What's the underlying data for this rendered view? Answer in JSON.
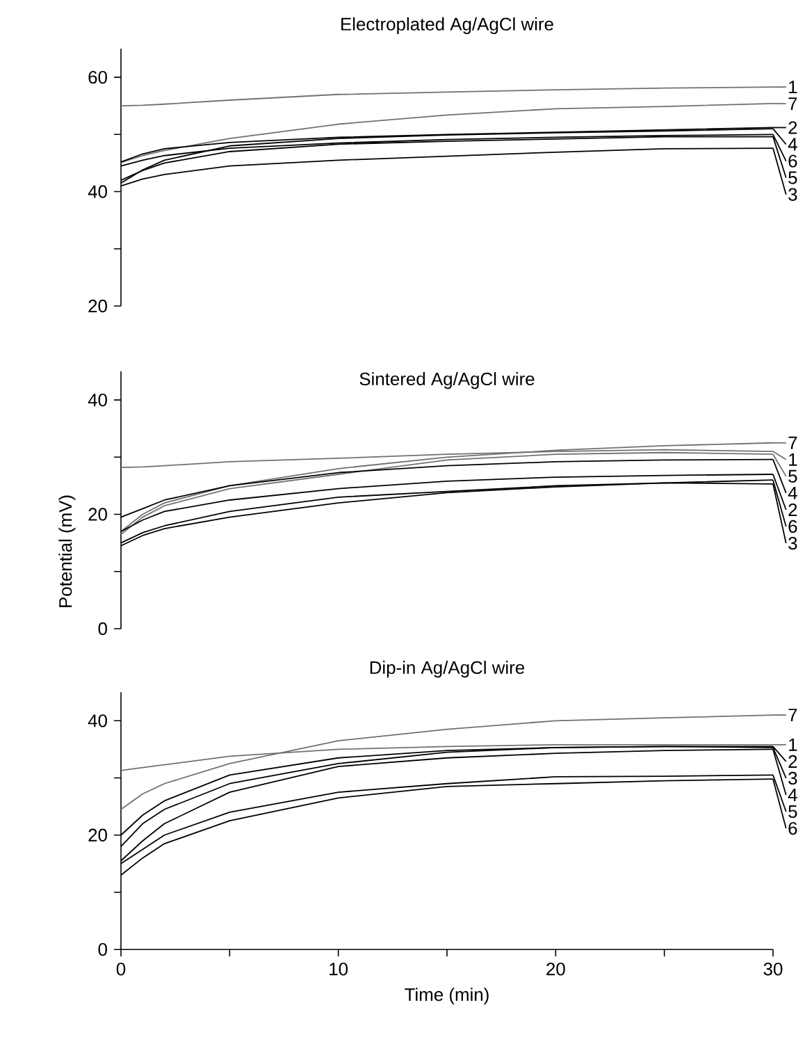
{
  "chart_data": [
    {
      "type": "line",
      "title": "Electroplated Ag/AgCl wire",
      "legend": "right",
      "xlim": [
        0,
        30
      ],
      "ylim": [
        20,
        65
      ],
      "yticks": [
        20,
        {
          "value": 30,
          "label": null
        },
        40,
        {
          "value": 50,
          "label": null
        },
        60
      ],
      "tick_labels": "y",
      "x": [
        0,
        1,
        2,
        5,
        10,
        15,
        20,
        25,
        30
      ],
      "series": [
        {
          "name": "1",
          "color": "#707070",
          "values": [
            55.0,
            55.1,
            55.3,
            56.0,
            57.0,
            57.4,
            57.8,
            58.1,
            58.3
          ]
        },
        {
          "name": "7",
          "color": "#707070",
          "values": [
            45.1,
            46.3,
            47.2,
            49.3,
            51.8,
            53.4,
            54.5,
            54.9,
            55.4
          ]
        },
        {
          "name": "2",
          "color": "#000000",
          "values": [
            45.2,
            46.6,
            47.5,
            48.6,
            49.5,
            50.0,
            50.4,
            50.8,
            51.2
          ]
        },
        {
          "name": "4",
          "color": "#000000",
          "values": [
            41.5,
            43.8,
            45.5,
            48.0,
            49.3,
            49.9,
            50.3,
            50.6,
            51.0
          ]
        },
        {
          "name": "6",
          "color": "#000000",
          "values": [
            44.5,
            45.5,
            46.3,
            47.6,
            48.5,
            49.1,
            49.5,
            49.8,
            50.0
          ]
        },
        {
          "name": "5",
          "color": "#000000",
          "values": [
            42.0,
            43.7,
            45.0,
            47.0,
            48.3,
            48.8,
            49.2,
            49.6,
            49.6
          ]
        },
        {
          "name": "3",
          "color": "#000000",
          "values": [
            41.0,
            42.2,
            43.0,
            44.5,
            45.5,
            46.2,
            46.9,
            47.5,
            47.6
          ]
        }
      ]
    },
    {
      "type": "line",
      "title": "Sintered Ag/AgCl wire",
      "legend": "right",
      "ylabel": "Potential (mV)",
      "xlim": [
        0,
        30
      ],
      "ylim": [
        0,
        45
      ],
      "yticks": [
        0,
        {
          "value": 10,
          "label": null
        },
        20,
        {
          "value": 30,
          "label": null
        },
        40
      ],
      "tick_labels": "y",
      "x": [
        0,
        1,
        2,
        5,
        10,
        15,
        20,
        25,
        30
      ],
      "series": [
        {
          "name": "1",
          "color": "#707070",
          "values": [
            28.2,
            28.3,
            28.5,
            29.2,
            29.8,
            30.5,
            31.0,
            31.3,
            31.0
          ]
        },
        {
          "name": "7",
          "color": "#707070",
          "values": [
            17.0,
            20.0,
            22.0,
            25.0,
            28.0,
            30.0,
            31.2,
            32.0,
            32.5
          ]
        },
        {
          "name": "5",
          "color": "#707070",
          "values": [
            16.5,
            19.5,
            21.5,
            24.5,
            27.0,
            29.5,
            30.5,
            30.8,
            30.5
          ]
        },
        {
          "name": "4",
          "color": "#000000",
          "values": [
            19.5,
            21.0,
            22.5,
            25.0,
            27.3,
            28.5,
            29.2,
            29.5,
            29.6
          ]
        },
        {
          "name": "2",
          "color": "#000000",
          "values": [
            17.0,
            19.0,
            20.5,
            22.5,
            24.5,
            25.8,
            26.5,
            26.8,
            27.0
          ]
        },
        {
          "name": "6",
          "color": "#000000",
          "values": [
            14.5,
            16.3,
            17.5,
            19.5,
            22.0,
            23.8,
            24.8,
            25.5,
            26.0
          ]
        },
        {
          "name": "3",
          "color": "#000000",
          "values": [
            15.0,
            16.8,
            18.0,
            20.5,
            23.0,
            24.0,
            25.0,
            25.5,
            25.3
          ]
        }
      ]
    },
    {
      "type": "line",
      "title": "Dip-in Ag/AgCl wire",
      "legend": "right",
      "xlabel": "Time (min)",
      "xlim": [
        0,
        30
      ],
      "ylim": [
        0,
        45
      ],
      "xticks": [
        0,
        {
          "value": 5,
          "label": null
        },
        10,
        {
          "value": 15,
          "label": null
        },
        20,
        {
          "value": 25,
          "label": null
        },
        30
      ],
      "yticks": [
        0,
        {
          "value": 10,
          "label": null
        },
        20,
        {
          "value": 30,
          "label": null
        },
        40
      ],
      "x": [
        0,
        1,
        2,
        5,
        10,
        15,
        20,
        25,
        30
      ],
      "series": [
        {
          "name": "7",
          "color": "#707070",
          "values": [
            24.5,
            27.2,
            29.0,
            32.5,
            36.5,
            38.5,
            40.0,
            40.5,
            41.0
          ]
        },
        {
          "name": "1",
          "color": "#707070",
          "values": [
            31.3,
            31.8,
            32.3,
            33.8,
            35.0,
            35.5,
            35.8,
            35.8,
            35.8
          ]
        },
        {
          "name": "2",
          "color": "#000000",
          "values": [
            20.0,
            23.5,
            26.0,
            30.5,
            33.5,
            34.8,
            35.3,
            35.5,
            35.5
          ]
        },
        {
          "name": "3",
          "color": "#000000",
          "values": [
            18.0,
            22.0,
            24.5,
            29.0,
            32.5,
            34.5,
            35.3,
            35.5,
            35.3
          ]
        },
        {
          "name": "4",
          "color": "#000000",
          "values": [
            15.5,
            19.0,
            22.0,
            27.5,
            32.0,
            33.5,
            34.3,
            34.8,
            35.0
          ]
        },
        {
          "name": "5",
          "color": "#000000",
          "values": [
            15.0,
            17.5,
            20.0,
            24.0,
            27.5,
            29.0,
            30.2,
            30.3,
            30.5
          ]
        },
        {
          "name": "6",
          "color": "#000000",
          "values": [
            13.0,
            16.0,
            18.5,
            22.5,
            26.5,
            28.5,
            29.0,
            29.5,
            29.8
          ]
        }
      ]
    }
  ]
}
